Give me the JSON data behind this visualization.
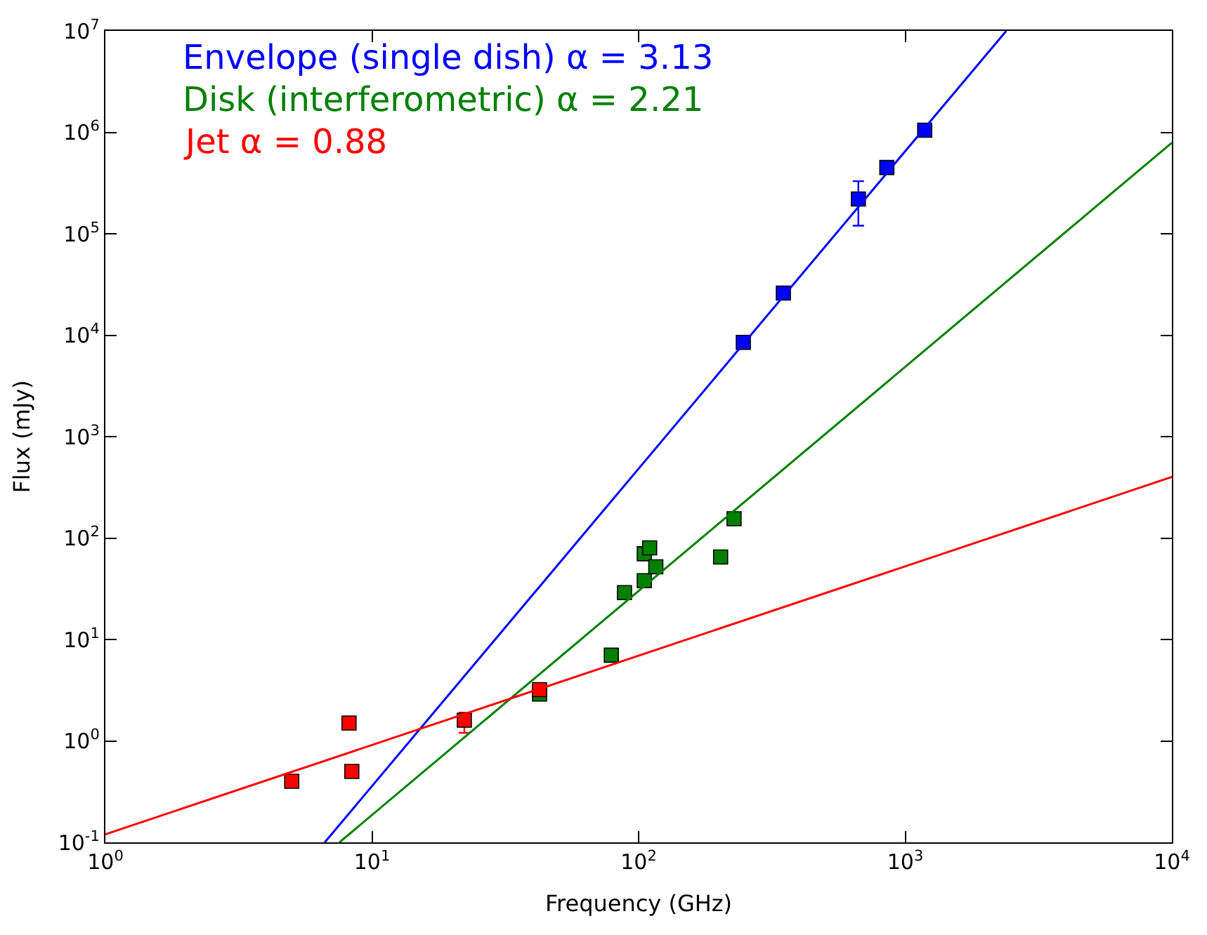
{
  "chart_data": {
    "type": "scatter",
    "xlabel": "Frequency (GHz)",
    "ylabel": "Flux (mJy)",
    "log": "xy",
    "legend": "top left",
    "marker": "square",
    "xlim": [
      1,
      10000
    ],
    "ylim": [
      0.1,
      10000000
    ],
    "xticks": [
      {
        "value": 1,
        "label": "10$^{0}$"
      },
      {
        "value": 10,
        "label": "10$^{1}$"
      },
      {
        "value": 100,
        "label": "10$^{2}$"
      },
      {
        "value": 1000,
        "label": "10$^{3}$"
      },
      {
        "value": 10000,
        "label": "10$^{4}$"
      }
    ],
    "yticks": [
      {
        "value": 0.1,
        "label": "10$^{-1}$"
      },
      {
        "value": 1,
        "label": "10$^{0}$"
      },
      {
        "value": 10,
        "label": "10$^{1}$"
      },
      {
        "value": 100,
        "label": "10$^{2}$"
      },
      {
        "value": 1000,
        "label": "10$^{3}$"
      },
      {
        "value": 10000,
        "label": "10$^{4}$"
      },
      {
        "value": 100000,
        "label": "10$^{5}$"
      },
      {
        "value": 1000000,
        "label": "10$^{6}$"
      },
      {
        "value": 10000000,
        "label": "10$^{7}$"
      }
    ],
    "series": [
      {
        "name": "Envelope (single dish) α = 3.13",
        "color": "#0000ff",
        "x": [
          247,
          349,
          667,
          853,
          1183
        ],
        "values": [
          8500,
          26000,
          220000,
          450000,
          1050000
        ],
        "errors": [
          null,
          null,
          [
            120000,
            330000
          ],
          null,
          null
        ]
      },
      {
        "name": "Disk (interferometric) α = 2.21",
        "color": "#008000",
        "x": [
          42.5,
          79,
          88.5,
          105,
          105,
          110,
          116,
          203,
          228
        ],
        "values": [
          2.9,
          7,
          29,
          38,
          70,
          80,
          52,
          65,
          155
        ],
        "errors": [
          null,
          null,
          null,
          null,
          null,
          null,
          null,
          [
            56,
            71
          ],
          null
        ]
      },
      {
        "name": "Jet α = 0.88",
        "color": "#ff0000",
        "x": [
          5.0,
          8.2,
          8.4,
          22.2,
          42.5
        ],
        "values": [
          0.4,
          1.5,
          0.5,
          1.6,
          3.2
        ],
        "errors": [
          null,
          null,
          null,
          [
            1.2,
            1.9
          ],
          null
        ]
      },
      {
        "type": "line",
        "color": "#0000ff",
        "marker": "none",
        "x": [
          6.65,
          2393
        ],
        "values": [
          0.1,
          10000000
        ]
      },
      {
        "type": "line",
        "color": "#008000",
        "marker": "none",
        "x": [
          7.55,
          10000
        ],
        "values": [
          0.1,
          790000
        ]
      },
      {
        "type": "line",
        "color": "#ff0000",
        "marker": "none",
        "x": [
          1,
          10000
        ],
        "values": [
          0.12,
          400
        ]
      }
    ]
  }
}
